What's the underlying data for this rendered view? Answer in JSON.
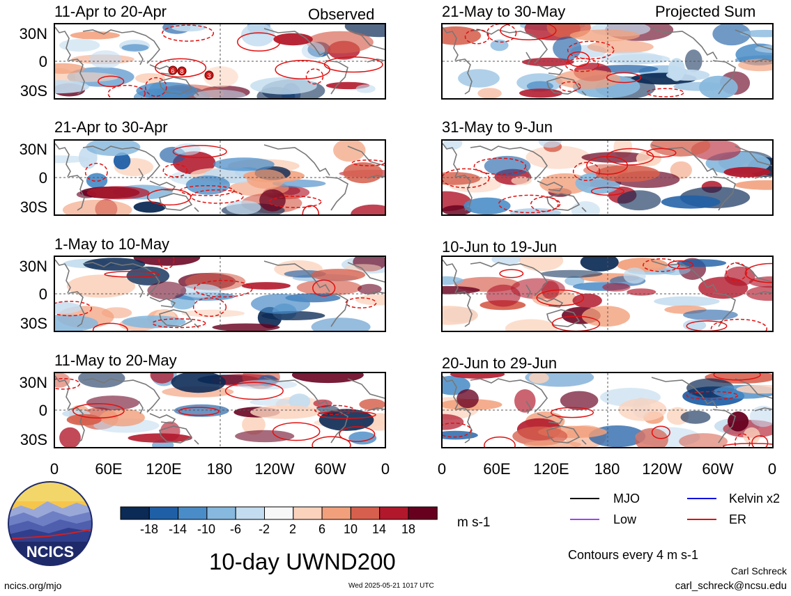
{
  "panels": {
    "observed_tag": "Observed",
    "projected_tag": "Projected Sum",
    "left": [
      {
        "title": "11-Apr to 20-Apr"
      },
      {
        "title": "21-Apr to 30-Apr"
      },
      {
        "title": "1-May to 10-May"
      },
      {
        "title": "11-May to 20-May"
      }
    ],
    "right": [
      {
        "title": "21-May to 30-May"
      },
      {
        "title": "31-May to 9-Jun"
      },
      {
        "title": "10-Jun to 19-Jun"
      },
      {
        "title": "20-Jun to 29-Jun"
      }
    ]
  },
  "lat_labels": [
    "30N",
    "0",
    "30S"
  ],
  "lon_labels": [
    "0",
    "60E",
    "120E",
    "180",
    "120W",
    "60W",
    "0"
  ],
  "colorbar": {
    "ticks": [
      "-18",
      "-14",
      "-10",
      "-6",
      "-2",
      "2",
      "6",
      "10",
      "14",
      "18"
    ],
    "colors": [
      "#0b2a55",
      "#1f5fa6",
      "#4a8cc7",
      "#87b8dd",
      "#c3dcef",
      "#f7f7f7",
      "#fbd3bd",
      "#f2a07c",
      "#d6604d",
      "#b2182b",
      "#67001f"
    ],
    "units": "m s-1"
  },
  "legend": {
    "mjo": {
      "label": "MJO",
      "color": "#000000"
    },
    "kelvin": {
      "label": "Kelvin x2",
      "color": "#1010e0"
    },
    "low": {
      "label": "Low",
      "color": "#a040ff"
    },
    "er": {
      "label": "ER",
      "color": "#e01010"
    }
  },
  "contour_note": "Contours every 4 m s-1",
  "main_title": "10-day UWND200",
  "logo_text": "NCICS",
  "footer": {
    "left": "ncics.org/mjo",
    "center": "Wed 2025-05-21 1017 UTC",
    "author": "Carl Schreck",
    "email": "carl_schreck@ncsu.edu"
  },
  "tc_markers": [
    "6",
    "8",
    "3"
  ]
}
